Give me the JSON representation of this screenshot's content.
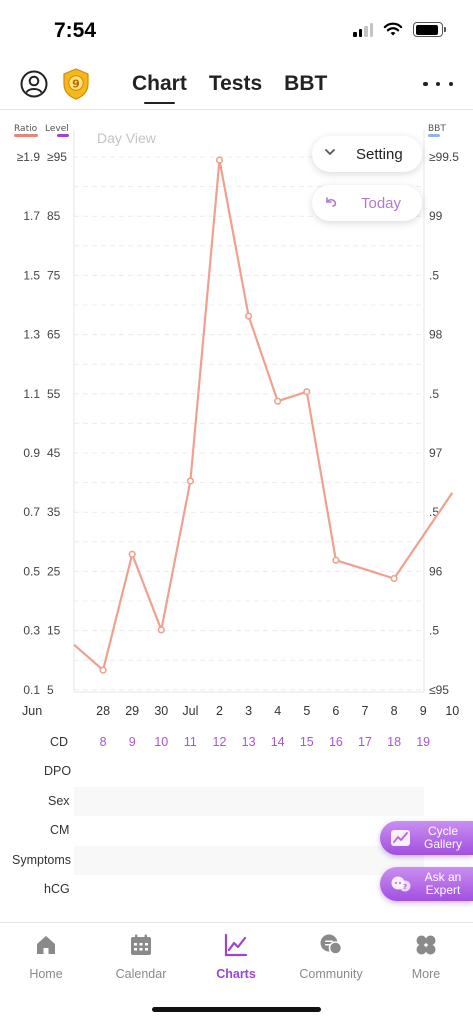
{
  "status_bar": {
    "time": "7:54"
  },
  "header": {
    "badge_level": "9",
    "tabs": [
      {
        "label": "Chart",
        "active": true
      },
      {
        "label": "Tests",
        "active": false
      },
      {
        "label": "BBT",
        "active": false
      }
    ]
  },
  "chart": {
    "view_label": "Day View",
    "ratio_legend": "Ratio",
    "level_legend": "Level",
    "bbt_legend": "BBT",
    "ratio_ticks": [
      "≥1.9",
      "1.7",
      "1.5",
      "1.3",
      "1.1",
      "0.9",
      "0.7",
      "0.5",
      "0.3",
      "0.1"
    ],
    "level_ticks": [
      "≥95",
      "85",
      "75",
      "65",
      "55",
      "45",
      "35",
      "25",
      "15",
      "5"
    ],
    "bbt_ticks": [
      "≥99.5",
      "99",
      ".5",
      "98",
      ".5",
      "97",
      ".5",
      "96",
      ".5",
      "≤95"
    ],
    "colors": {
      "line": "#f0a090",
      "ratio": "#e8847a",
      "level": "#9b45d6",
      "bbt": "#8fb4f0"
    }
  },
  "chart_data": {
    "type": "line",
    "x": [
      "Jun 27",
      "Jun 28",
      "Jun 29",
      "Jun 30",
      "Jul 1",
      "Jul 2",
      "Jul 3",
      "Jul 4",
      "Jul 5",
      "Jul 6",
      "Jul 7",
      "Jul 8",
      "Jul 9",
      "Jul 10"
    ],
    "series": [
      {
        "values": [
          13,
          8.7,
          28.3,
          15.5,
          40.7,
          95,
          68.6,
          54.2,
          55.8,
          27.3,
          null,
          24.2,
          null,
          38.7
        ],
        "markers": [
          false,
          true,
          true,
          true,
          true,
          true,
          true,
          true,
          true,
          true,
          false,
          true,
          false,
          false
        ]
      }
    ],
    "ylim": [
      5,
      95
    ]
  },
  "controls": {
    "setting_label": "Setting",
    "today_label": "Today"
  },
  "axis": {
    "month_start": "Jun",
    "month_mid": "Jul",
    "dates": [
      "28",
      "29",
      "30",
      "Jul",
      "2",
      "3",
      "4",
      "5",
      "6",
      "7",
      "8",
      "9",
      "10"
    ]
  },
  "rows": {
    "cd_label": "CD",
    "cd_values": [
      "8",
      "9",
      "10",
      "11",
      "12",
      "13",
      "14",
      "15",
      "16",
      "17",
      "18",
      "19"
    ],
    "dpo_label": "DPO",
    "sex_label": "Sex",
    "cm_label": "CM",
    "symptoms_label": "Symptoms",
    "hcg_label": "hCG"
  },
  "floating": {
    "cycle_gallery": "Cycle Gallery",
    "ask_expert": "Ask an Expert"
  },
  "bottom_nav": [
    {
      "label": "Home",
      "icon": "home-icon",
      "active": false
    },
    {
      "label": "Calendar",
      "icon": "calendar-icon",
      "active": false
    },
    {
      "label": "Charts",
      "icon": "charts-icon",
      "active": true
    },
    {
      "label": "Community",
      "icon": "community-icon",
      "active": false
    },
    {
      "label": "More",
      "icon": "more-grid-icon",
      "active": false
    }
  ]
}
